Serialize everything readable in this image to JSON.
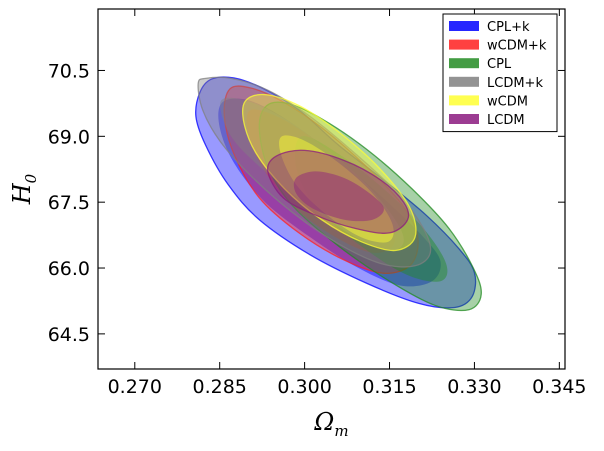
{
  "chart_data": {
    "type": "contour",
    "title": "",
    "xlabel": "Ω",
    "xlabel_sub": "m",
    "ylabel": "H",
    "ylabel_sub": "0",
    "xlim": [
      0.2635,
      0.346
    ],
    "ylim": [
      63.7,
      71.9
    ],
    "xticks": [
      0.27,
      0.285,
      0.3,
      0.315,
      0.33,
      0.345
    ],
    "xtick_labels": [
      "0.270",
      "0.285",
      "0.300",
      "0.315",
      "0.330",
      "0.345"
    ],
    "yticks": [
      64.5,
      66.0,
      67.5,
      69.0,
      70.5
    ],
    "ytick_labels": [
      "64.5",
      "66.0",
      "67.5",
      "69.0",
      "70.5"
    ],
    "legend_position": "top-right",
    "series": [
      {
        "name": "CPL+k",
        "color": "#0000ff",
        "outer": [
          [
            0.2815,
            70.0
          ],
          [
            0.2835,
            70.3
          ],
          [
            0.2875,
            70.33
          ],
          [
            0.2925,
            70.1
          ],
          [
            0.299,
            69.6
          ],
          [
            0.306,
            68.8
          ],
          [
            0.314,
            68.0
          ],
          [
            0.3215,
            67.2
          ],
          [
            0.3272,
            66.45
          ],
          [
            0.33,
            65.9
          ],
          [
            0.3296,
            65.35
          ],
          [
            0.3265,
            65.1
          ],
          [
            0.32,
            65.2
          ],
          [
            0.311,
            65.65
          ],
          [
            0.301,
            66.3
          ],
          [
            0.292,
            67.1
          ],
          [
            0.2865,
            67.9
          ],
          [
            0.2825,
            68.8
          ],
          [
            0.2808,
            69.45
          ],
          [
            0.2815,
            70.0
          ]
        ],
        "inner": [
          [
            0.2853,
            69.75
          ],
          [
            0.289,
            69.85
          ],
          [
            0.294,
            69.6
          ],
          [
            0.301,
            69.0
          ],
          [
            0.3085,
            68.2
          ],
          [
            0.3155,
            67.4
          ],
          [
            0.321,
            66.7
          ],
          [
            0.324,
            66.15
          ],
          [
            0.3225,
            65.7
          ],
          [
            0.317,
            65.6
          ],
          [
            0.3095,
            66.0
          ],
          [
            0.301,
            66.7
          ],
          [
            0.293,
            67.5
          ],
          [
            0.2875,
            68.4
          ],
          [
            0.285,
            69.2
          ],
          [
            0.2853,
            69.75
          ]
        ]
      },
      {
        "name": "wCDM+k",
        "color": "#ff2020",
        "outer": [
          [
            0.2868,
            70.08
          ],
          [
            0.2905,
            70.1
          ],
          [
            0.296,
            69.8
          ],
          [
            0.303,
            69.2
          ],
          [
            0.311,
            68.3
          ],
          [
            0.3175,
            67.4
          ],
          [
            0.32,
            66.7
          ],
          [
            0.3188,
            66.08
          ],
          [
            0.314,
            65.88
          ],
          [
            0.307,
            66.18
          ],
          [
            0.299,
            66.8
          ],
          [
            0.292,
            67.6
          ],
          [
            0.2875,
            68.6
          ],
          [
            0.2858,
            69.5
          ],
          [
            0.2868,
            70.08
          ]
        ],
        "inner": [
          [
            0.2905,
            69.6
          ],
          [
            0.296,
            69.4
          ],
          [
            0.303,
            68.8
          ],
          [
            0.31,
            68.0
          ],
          [
            0.315,
            67.2
          ],
          [
            0.3158,
            66.55
          ],
          [
            0.312,
            66.35
          ],
          [
            0.3055,
            66.7
          ],
          [
            0.298,
            67.4
          ],
          [
            0.2925,
            68.3
          ],
          [
            0.29,
            69.1
          ],
          [
            0.2905,
            69.6
          ]
        ]
      },
      {
        "name": "CPL",
        "color": "#228b22",
        "outer": [
          [
            0.2933,
            69.7
          ],
          [
            0.297,
            69.75
          ],
          [
            0.303,
            69.4
          ],
          [
            0.311,
            68.7
          ],
          [
            0.319,
            67.8
          ],
          [
            0.3255,
            66.9
          ],
          [
            0.3298,
            66.0
          ],
          [
            0.3312,
            65.4
          ],
          [
            0.329,
            65.05
          ],
          [
            0.323,
            65.15
          ],
          [
            0.315,
            65.7
          ],
          [
            0.306,
            66.5
          ],
          [
            0.298,
            67.4
          ],
          [
            0.2935,
            68.3
          ],
          [
            0.292,
            69.2
          ],
          [
            0.2933,
            69.7
          ]
        ],
        "inner": [
          [
            0.2995,
            69.0
          ],
          [
            0.306,
            68.6
          ],
          [
            0.314,
            67.8
          ],
          [
            0.321,
            66.9
          ],
          [
            0.325,
            66.1
          ],
          [
            0.324,
            65.7
          ],
          [
            0.318,
            65.85
          ],
          [
            0.31,
            66.5
          ],
          [
            0.302,
            67.4
          ],
          [
            0.2985,
            68.3
          ],
          [
            0.2995,
            69.0
          ]
        ]
      },
      {
        "name": "LCDM+k",
        "color": "#808080",
        "outer": [
          [
            0.2812,
            70.2
          ],
          [
            0.2825,
            70.32
          ],
          [
            0.287,
            70.32
          ],
          [
            0.2935,
            70.05
          ],
          [
            0.301,
            69.45
          ],
          [
            0.309,
            68.6
          ],
          [
            0.3165,
            67.7
          ],
          [
            0.321,
            66.9
          ],
          [
            0.3222,
            66.35
          ],
          [
            0.3195,
            66.05
          ],
          [
            0.3135,
            66.1
          ],
          [
            0.306,
            66.55
          ],
          [
            0.298,
            67.25
          ],
          [
            0.2905,
            68.1
          ],
          [
            0.285,
            68.9
          ],
          [
            0.282,
            69.6
          ],
          [
            0.2812,
            70.2
          ]
        ],
        "inner": [
          [
            0.2852,
            69.8
          ],
          [
            0.29,
            69.8
          ],
          [
            0.2965,
            69.4
          ],
          [
            0.304,
            68.7
          ],
          [
            0.311,
            67.9
          ],
          [
            0.316,
            67.1
          ],
          [
            0.3175,
            66.6
          ],
          [
            0.315,
            66.4
          ],
          [
            0.309,
            66.7
          ],
          [
            0.301,
            67.4
          ],
          [
            0.293,
            68.2
          ],
          [
            0.287,
            69.0
          ],
          [
            0.2852,
            69.8
          ]
        ]
      },
      {
        "name": "wCDM",
        "color": "#ffff33",
        "outer": [
          [
            0.2895,
            69.8
          ],
          [
            0.293,
            69.95
          ],
          [
            0.299,
            69.7
          ],
          [
            0.306,
            69.1
          ],
          [
            0.313,
            68.3
          ],
          [
            0.3185,
            67.4
          ],
          [
            0.3195,
            66.7
          ],
          [
            0.316,
            66.4
          ],
          [
            0.31,
            66.6
          ],
          [
            0.303,
            67.1
          ],
          [
            0.2965,
            67.8
          ],
          [
            0.2915,
            68.6
          ],
          [
            0.2893,
            69.3
          ],
          [
            0.2895,
            69.8
          ]
        ],
        "inner": [
          [
            0.296,
            69.0
          ],
          [
            0.3,
            68.9
          ],
          [
            0.306,
            68.4
          ],
          [
            0.312,
            67.7
          ],
          [
            0.3155,
            67.0
          ],
          [
            0.3148,
            66.6
          ],
          [
            0.31,
            66.7
          ],
          [
            0.304,
            67.2
          ],
          [
            0.2985,
            67.9
          ],
          [
            0.2958,
            68.6
          ],
          [
            0.296,
            69.0
          ]
        ]
      },
      {
        "name": "LCDM",
        "color": "#8b1a7f",
        "outer": [
          [
            0.2935,
            68.2
          ],
          [
            0.295,
            68.55
          ],
          [
            0.3,
            68.68
          ],
          [
            0.307,
            68.45
          ],
          [
            0.3135,
            68.0
          ],
          [
            0.3175,
            67.5
          ],
          [
            0.3182,
            67.1
          ],
          [
            0.315,
            66.8
          ],
          [
            0.309,
            66.9
          ],
          [
            0.302,
            67.2
          ],
          [
            0.2962,
            67.6
          ],
          [
            0.2935,
            68.2
          ]
        ],
        "inner": [
          [
            0.2985,
            68.05
          ],
          [
            0.302,
            68.2
          ],
          [
            0.307,
            68.05
          ],
          [
            0.3115,
            67.7
          ],
          [
            0.314,
            67.35
          ],
          [
            0.312,
            67.1
          ],
          [
            0.307,
            67.1
          ],
          [
            0.3015,
            67.35
          ],
          [
            0.2985,
            67.7
          ],
          [
            0.2985,
            68.05
          ]
        ]
      }
    ]
  }
}
